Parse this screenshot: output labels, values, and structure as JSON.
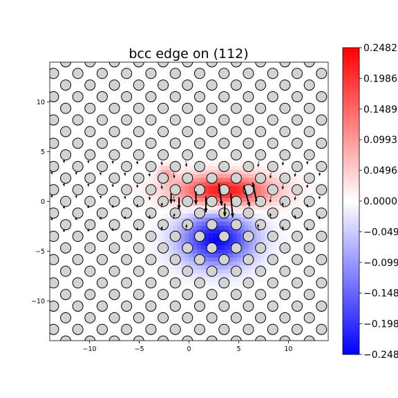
{
  "chart_data": {
    "type": "heatmap",
    "title": "bcc edge on (112)",
    "xlabel": "",
    "ylabel": "",
    "xlim": [
      -14,
      14
    ],
    "ylim": [
      -14,
      14
    ],
    "x_ticks": [
      -10,
      -5,
      0,
      5,
      10
    ],
    "x_tick_labels": [
      "−10",
      "−5",
      "0",
      "5",
      "10"
    ],
    "y_ticks": [
      10,
      5,
      0,
      -5,
      -10
    ],
    "y_tick_labels": [
      "10",
      "5",
      "0",
      "−5",
      "−10"
    ],
    "grid": false,
    "colormap": "bwr",
    "colorbar": {
      "min": -0.2482,
      "max": 0.2482,
      "ticks": [
        0.2482,
        0.1986,
        0.1489,
        0.0993,
        0.0496,
        0.0,
        -0.0496,
        -0.0993,
        -0.1489,
        -0.1986,
        -0.2482
      ],
      "tick_labels": [
        "0.2482",
        "0.1986",
        "0.1489",
        "0.0993",
        "0.0496",
        "0.0000",
        "−0.0496",
        "−0.0993",
        "−0.1489",
        "−0.1986",
        "−0.2482"
      ]
    },
    "atoms": {
      "lattice_row_spacing": 1.17,
      "lattice_col_spacing": 2.45,
      "row_offset": 1.225,
      "fill": "#d3d3d3",
      "edge": "#000000"
    },
    "displacement_field": {
      "arrow_color": "#000000",
      "core_position": [
        3.5,
        0.0
      ],
      "largest_arrows": [
        {
          "x": 3.0,
          "y": 1.8,
          "dx": 0.3,
          "dy": -2.2
        },
        {
          "x": 4.2,
          "y": 0.8,
          "dx": 0.2,
          "dy": -2.4
        },
        {
          "x": 5.5,
          "y": 1.6,
          "dx": 0.6,
          "dy": -2.1
        },
        {
          "x": 6.8,
          "y": 0.0,
          "dx": -0.4,
          "dy": 1.9
        },
        {
          "x": 1.7,
          "y": 0.5,
          "dx": 0.0,
          "dy": -1.6
        },
        {
          "x": 0.7,
          "y": 1.0,
          "dx": 0.0,
          "dy": -1.3
        },
        {
          "x": -1.0,
          "y": 0.4,
          "dx": 0.0,
          "dy": -1.2
        },
        {
          "x": -1.8,
          "y": 0.8,
          "dx": 0.0,
          "dy": -1.0
        },
        {
          "x": 3.6,
          "y": -0.2,
          "dx": 0.0,
          "dy": -1.3
        }
      ]
    },
    "color_field": {
      "positive_lobes": [
        {
          "x": 3.5,
          "y": 1.1,
          "sx": 4.8,
          "sy": 1.6,
          "value": 0.23
        },
        {
          "x": -2.3,
          "y": 2.8,
          "sx": 0.8,
          "sy": 0.8,
          "value": 0.08
        }
      ],
      "negative_lobes": [
        {
          "x": 2.8,
          "y": -3.8,
          "sx": 3.6,
          "sy": 2.6,
          "value": -0.24
        }
      ]
    }
  }
}
